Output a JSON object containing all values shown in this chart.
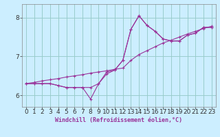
{
  "xlabel": "Windchill (Refroidissement éolien,°C)",
  "background_color": "#cceeff",
  "line_color": "#993399",
  "grid_color": "#99cccc",
  "x_hours": [
    0,
    1,
    2,
    3,
    4,
    5,
    6,
    7,
    8,
    9,
    10,
    11,
    12,
    13,
    14,
    15,
    16,
    17,
    18,
    19,
    20,
    21,
    22,
    23
  ],
  "temp_line": [
    6.3,
    6.3,
    6.3,
    6.3,
    6.25,
    6.2,
    6.2,
    6.2,
    6.2,
    6.3,
    6.55,
    6.65,
    6.9,
    7.7,
    8.05,
    7.8,
    7.65,
    7.45,
    7.4,
    7.4,
    7.55,
    7.6,
    7.75,
    7.75
  ],
  "windchill_line": [
    6.3,
    6.3,
    6.3,
    6.3,
    6.25,
    6.2,
    6.2,
    6.2,
    5.9,
    6.3,
    6.6,
    6.65,
    6.9,
    7.7,
    8.05,
    7.8,
    7.65,
    7.45,
    7.4,
    7.4,
    7.55,
    7.6,
    7.75,
    7.75
  ],
  "ref_line": [
    6.3,
    6.33,
    6.37,
    6.4,
    6.43,
    6.47,
    6.5,
    6.53,
    6.57,
    6.6,
    6.63,
    6.67,
    6.7,
    6.9,
    7.05,
    7.15,
    7.25,
    7.35,
    7.42,
    7.5,
    7.58,
    7.65,
    7.72,
    7.78
  ],
  "ylim": [
    5.7,
    8.35
  ],
  "yticks": [
    6,
    7,
    8
  ],
  "xlabel_fontsize": 6,
  "tick_fontsize": 6.5
}
